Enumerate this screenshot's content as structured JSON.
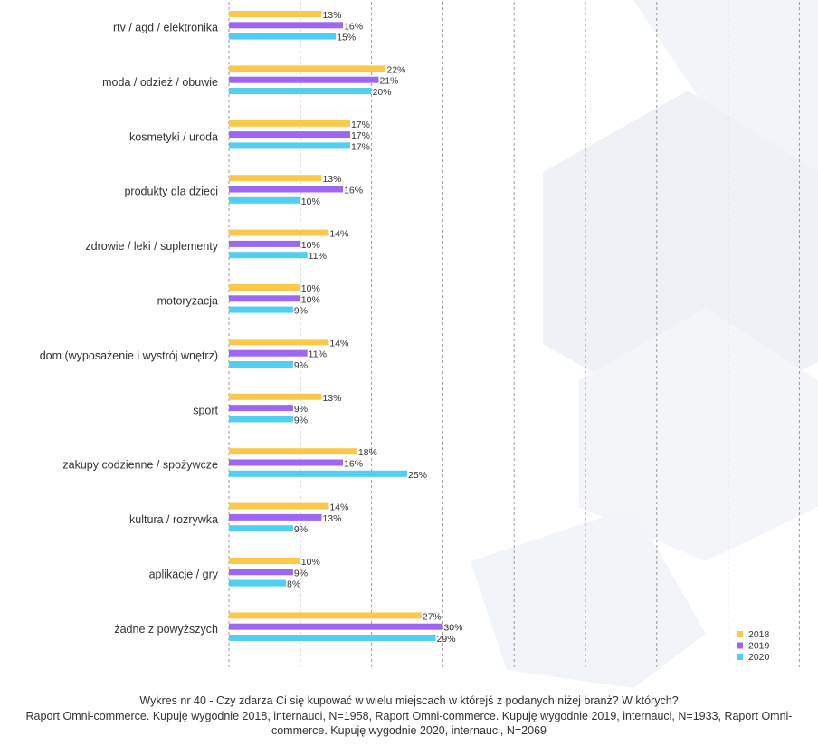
{
  "chart_data": {
    "type": "bar",
    "orientation": "horizontal",
    "categories": [
      "rtv / agd / elektronika",
      "moda / odzież / obuwie",
      "kosmetyki / uroda",
      "produkty dla dzieci",
      "zdrowie / leki / suplementy",
      "motoryzacja",
      "dom (wyposażenie i wystrój wnętrz)",
      "sport",
      "zakupy codzienne / spożywcze",
      "kultura / rozrywka",
      "aplikacje / gry",
      "żadne z powyższych"
    ],
    "series": [
      {
        "name": "2018",
        "color": "#FCC849",
        "values": [
          13,
          22,
          17,
          13,
          14,
          10,
          14,
          13,
          18,
          14,
          10,
          27
        ]
      },
      {
        "name": "2019",
        "color": "#9D67F2",
        "values": [
          16,
          21,
          17,
          16,
          10,
          10,
          11,
          9,
          16,
          13,
          9,
          30
        ]
      },
      {
        "name": "2020",
        "color": "#4FD0F2",
        "values": [
          15,
          20,
          17,
          10,
          11,
          9,
          9,
          9,
          25,
          9,
          8,
          29
        ]
      }
    ],
    "value_suffix": "%",
    "xlim": [
      0,
      80
    ],
    "grid": "vertical dashed",
    "legend_position": "bottom-right"
  },
  "caption": {
    "title": "Wykres nr 40 - Czy zdarza Ci się kupować w wielu miejscach w którejś z podanych niżej branż? W których?",
    "source": "Raport Omni-commerce. Kupuję wygodnie 2018, internauci, N=1958, Raport Omni-commerce. Kupuję wygodnie 2019, internauci, N=1933, Raport Omni-commerce. Kupuję wygodnie 2020, internauci, N=2069"
  },
  "colors": {
    "grid": "#9a9a9a",
    "watermark": "#eef2f6",
    "text": "#333333"
  }
}
